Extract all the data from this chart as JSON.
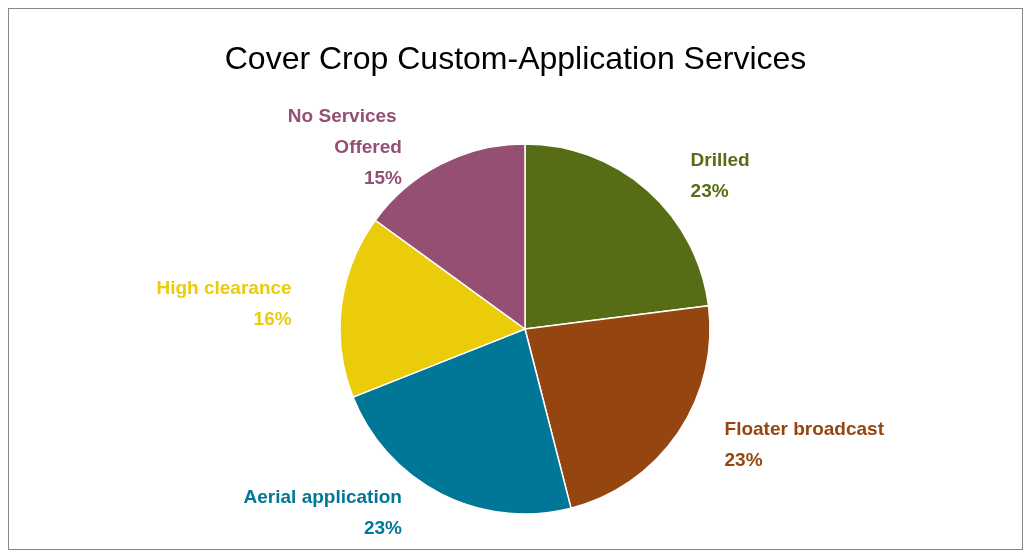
{
  "chart_data": {
    "type": "pie",
    "title": "Cover Crop Custom-Application Services",
    "categories": [
      "Drilled",
      "Floater broadcast",
      "Aerial application",
      "High clearance",
      "No Services Offered"
    ],
    "values": [
      23,
      23,
      23,
      16,
      15
    ],
    "colors": [
      "#566d16",
      "#954510",
      "#007797",
      "#ebcc0a",
      "#954f72"
    ],
    "value_labels": [
      "23%",
      "23%",
      "23%",
      "16%",
      "15%"
    ]
  }
}
